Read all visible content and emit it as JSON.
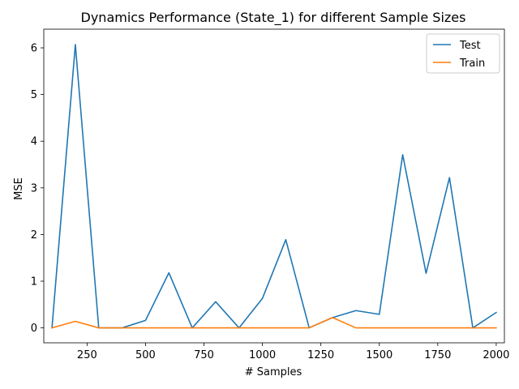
{
  "chart_data": {
    "type": "line",
    "title": "Dynamics Performance (State_1) for different Sample Sizes",
    "xlabel": "# Samples",
    "ylabel": "MSE",
    "xlim": [
      65,
      2035
    ],
    "ylim": [
      -0.32,
      6.4
    ],
    "xticks": [
      250,
      500,
      750,
      1000,
      1250,
      1500,
      1750,
      2000
    ],
    "yticks": [
      0,
      1,
      2,
      3,
      4,
      5,
      6
    ],
    "grid": false,
    "legend_position": "top-right",
    "x": [
      100,
      200,
      300,
      400,
      500,
      600,
      700,
      800,
      900,
      1000,
      1100,
      1200,
      1300,
      1400,
      1500,
      1600,
      1700,
      1800,
      1900,
      2000
    ],
    "series": [
      {
        "name": "Test",
        "color": "#1f77b4",
        "values": [
          0.0,
          6.07,
          0.0,
          0.0,
          0.16,
          1.18,
          0.0,
          0.56,
          0.0,
          0.63,
          1.89,
          0.0,
          0.22,
          0.37,
          0.29,
          3.71,
          1.17,
          3.22,
          0.0,
          0.33
        ]
      },
      {
        "name": "Train",
        "color": "#ff7f0e",
        "values": [
          0.0,
          0.14,
          0.0,
          0.0,
          0.0,
          0.0,
          0.0,
          0.0,
          0.0,
          0.0,
          0.0,
          0.0,
          0.22,
          0.0,
          0.0,
          0.0,
          0.0,
          0.0,
          0.0,
          0.0
        ]
      }
    ]
  }
}
